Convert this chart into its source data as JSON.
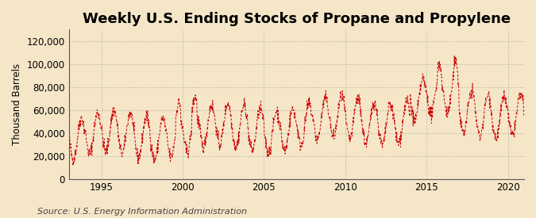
{
  "title": "Weekly U.S. Ending Stocks of Propane and Propylene",
  "ylabel": "Thousand Barrels",
  "source": "Source: U.S. Energy Information Administration",
  "x_start_year": 1993,
  "x_end_year": 2021,
  "ylim": [
    0,
    130000
  ],
  "yticks": [
    0,
    20000,
    40000,
    60000,
    80000,
    100000,
    120000
  ],
  "ytick_labels": [
    "0",
    "20,000",
    "40,000",
    "60,000",
    "80,000",
    "100,000",
    "120,000"
  ],
  "xticks": [
    1995,
    2000,
    2005,
    2010,
    2015,
    2020
  ],
  "line_color": "#cc0000",
  "bg_color": "#f5e6c8",
  "grid_color": "#aaaaaa",
  "title_fontsize": 13,
  "label_fontsize": 8.5,
  "source_fontsize": 8
}
